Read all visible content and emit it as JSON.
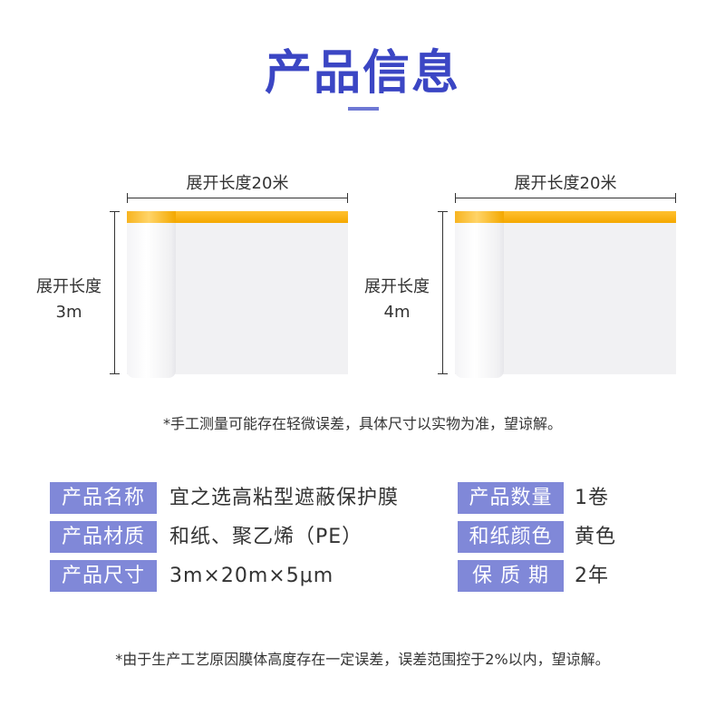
{
  "title": "产品信息",
  "diagrams": [
    {
      "width_label": "展开长度20米",
      "height_label_line1": "展开长度",
      "height_label_line2": "3m"
    },
    {
      "width_label": "展开长度20米",
      "height_label_line1": "展开长度",
      "height_label_line2": "4m"
    }
  ],
  "note1": "*手工测量可能存在轻微误差，具体尺寸以实物为准，望谅解。",
  "specs": [
    {
      "key": "产品名称",
      "value": "宜之选高粘型遮蔽保护膜"
    },
    {
      "key": "产品数量",
      "value": "1卷"
    },
    {
      "key": "产品材质",
      "value": "和纸、聚乙烯（PE）"
    },
    {
      "key": "和纸颜色",
      "value": "黄色"
    },
    {
      "key": "产品尺寸",
      "value": "3m×20m×5μm"
    },
    {
      "key": "保 质 期",
      "value": "2年"
    }
  ],
  "note2": "*由于生产工艺原因膜体高度存在一定误差，误差范围控于2%以内，望谅解。",
  "colors": {
    "title": "#3b46c4",
    "label_bg": "#8088d8",
    "tape": "#f5a800"
  }
}
